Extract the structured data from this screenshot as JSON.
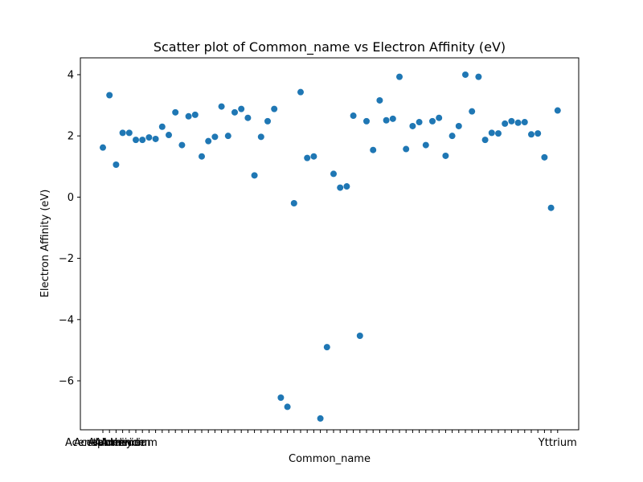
{
  "chart_data": {
    "type": "scatter",
    "title": "Scatter plot of Common_name vs Electron Affinity (eV)",
    "xlabel": "Common_name",
    "ylabel": "Electron Affinity (eV)",
    "ylim": [
      -7.6,
      4.55
    ],
    "yticks": [
      -6,
      -4,
      -2,
      0,
      2,
      4
    ],
    "ytick_labels": [
      "−6",
      "−4",
      "−2",
      "0",
      "2",
      "4"
    ],
    "grid": false,
    "legend": "none",
    "marker_color": "#1f77b4",
    "x_ticks_visible": [
      "Acenaphthene",
      "Acetaldehyde",
      "Aluminium",
      "Aluminium",
      "Americium"
    ],
    "x_tick_last_label": "Yttrium",
    "values": [
      1.62,
      3.33,
      1.06,
      2.1,
      2.1,
      1.87,
      1.87,
      1.95,
      1.9,
      2.3,
      2.03,
      2.77,
      1.7,
      2.64,
      2.69,
      1.33,
      1.83,
      1.97,
      2.96,
      2.0,
      2.77,
      2.88,
      2.59,
      0.71,
      1.97,
      2.48,
      2.88,
      -6.55,
      -6.85,
      -0.2,
      3.43,
      1.28,
      1.33,
      -7.23,
      -4.9,
      0.76,
      0.31,
      0.35,
      2.66,
      -4.53,
      2.48,
      1.54,
      3.16,
      2.51,
      2.56,
      3.93,
      1.57,
      2.32,
      2.45,
      1.7,
      2.48,
      2.59,
      1.35,
      2.0,
      2.32,
      4.0,
      2.8,
      3.93,
      1.87,
      2.1,
      2.08,
      2.4,
      2.48,
      2.43,
      2.45,
      2.05,
      2.08,
      1.3,
      -0.35,
      2.83
    ]
  }
}
